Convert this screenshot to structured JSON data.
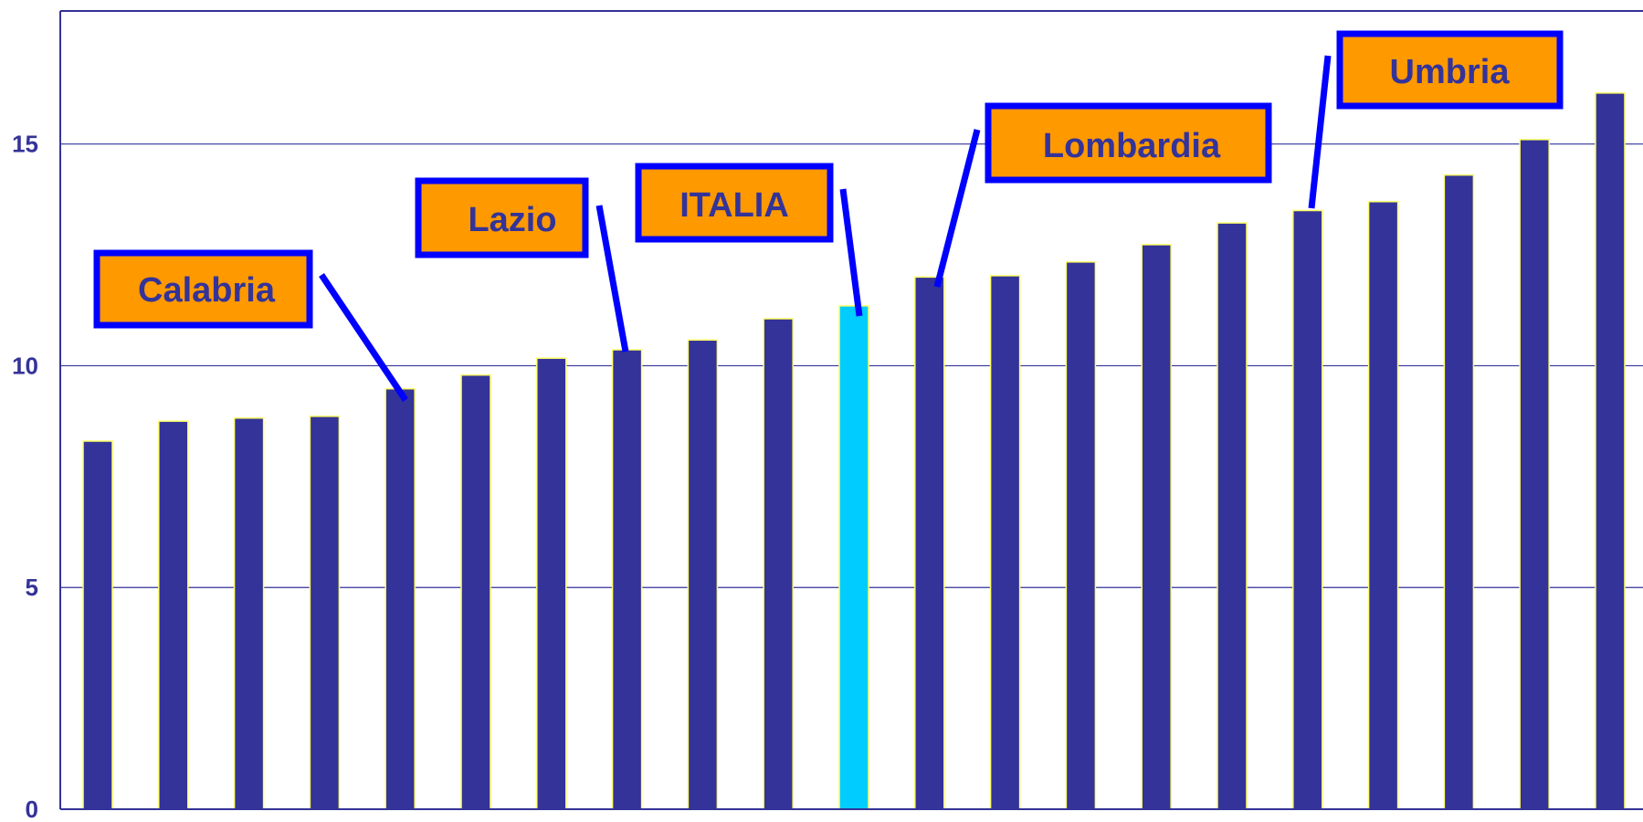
{
  "chart_data": {
    "type": "bar",
    "values": [
      8.3,
      8.75,
      8.82,
      8.86,
      9.48,
      9.79,
      10.17,
      10.36,
      10.58,
      11.06,
      11.35,
      12.0,
      12.03,
      12.34,
      12.73,
      13.22,
      13.5,
      13.7,
      14.3,
      15.1,
      16.15
    ],
    "highlight_index": 10,
    "ylim": [
      0,
      18
    ],
    "yticks": [
      0,
      5,
      10,
      15
    ],
    "ytick_labels": [
      "0",
      "5",
      "10",
      "15"
    ],
    "grid": true,
    "colors": {
      "bar": "#333399",
      "bar_highlight": "#00CCFF",
      "bar_outline": "#FFFF66",
      "axis": "#333399",
      "callout_fill": "#FF9900",
      "callout_border": "#0000FF",
      "callout_text": "#333399"
    },
    "callouts": [
      {
        "label": "Calabria",
        "bar_index": 4
      },
      {
        "label": "Lazio",
        "bar_index": 7
      },
      {
        "label": "ITALIA",
        "bar_index": 10
      },
      {
        "label": "Lombardia",
        "bar_index": 11
      },
      {
        "label": "Umbria",
        "bar_index": 16
      }
    ]
  }
}
